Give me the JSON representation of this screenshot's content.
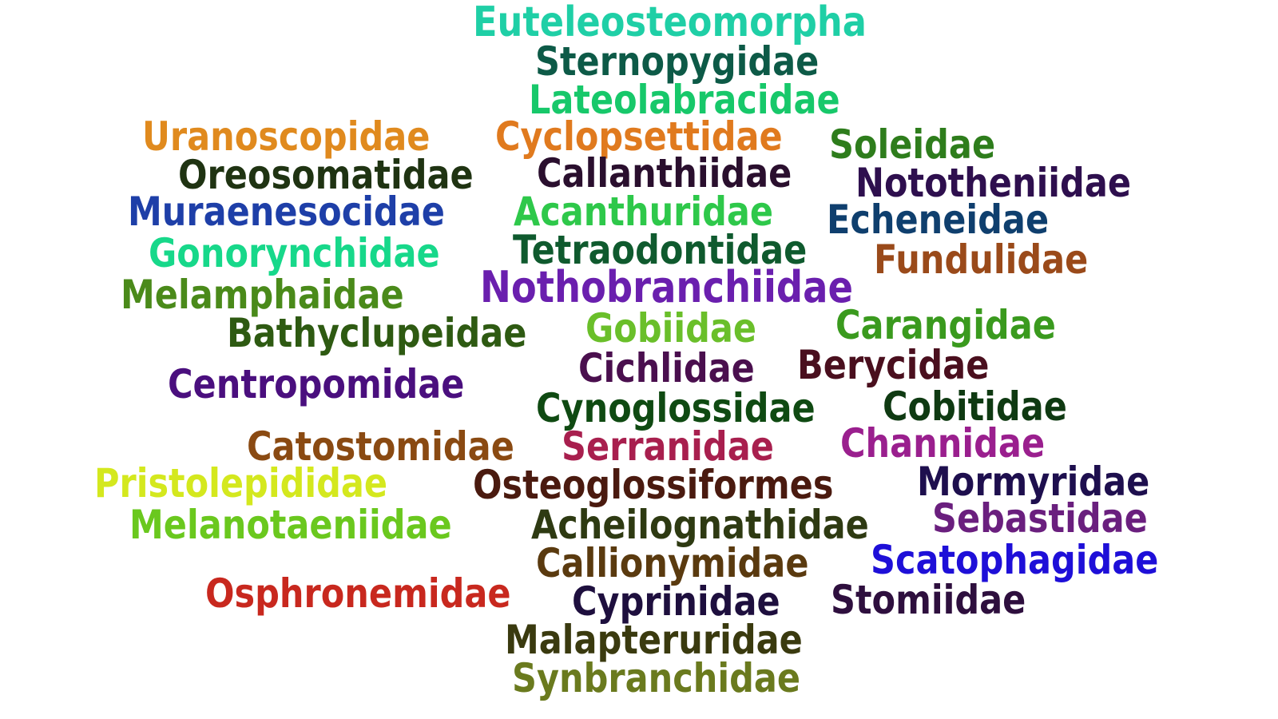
{
  "words": [
    {
      "text": "Euteleosteomorpha",
      "color": "#1fcfa6"
    },
    {
      "text": "Sternopygidae",
      "color": "#0d5a47"
    },
    {
      "text": "Lateolabracidae",
      "color": "#17c86a"
    },
    {
      "text": "Uranoscopidae",
      "color": "#e08a1e"
    },
    {
      "text": "Cyclopsettidae",
      "color": "#e07a1e"
    },
    {
      "text": "Soleidae",
      "color": "#2e7d1c"
    },
    {
      "text": "Oreosomatidae",
      "color": "#1f3312"
    },
    {
      "text": "Callanthiidae",
      "color": "#2a0f2e"
    },
    {
      "text": "Nototheniidae",
      "color": "#2e0f4e"
    },
    {
      "text": "Muraenesocidae",
      "color": "#1e3fa8"
    },
    {
      "text": "Acanthuridae",
      "color": "#2ec84a"
    },
    {
      "text": "Echeneidae",
      "color": "#0f3f6e"
    },
    {
      "text": "Gonorynchidae",
      "color": "#17d88a"
    },
    {
      "text": "Tetraodontidae",
      "color": "#0f5a2e"
    },
    {
      "text": "Fundulidae",
      "color": "#9a4a1a"
    },
    {
      "text": "Melamphaidae",
      "color": "#4a8a1a"
    },
    {
      "text": "Nothobranchiidae",
      "color": "#6a1fae"
    },
    {
      "text": "Bathyclupeidae",
      "color": "#2e5a12"
    },
    {
      "text": "Gobiidae",
      "color": "#6abf2a"
    },
    {
      "text": "Carangidae",
      "color": "#3a9a1e"
    },
    {
      "text": "Cichlidae",
      "color": "#4a0f4e"
    },
    {
      "text": "Berycidae",
      "color": "#4a0f1e"
    },
    {
      "text": "Centropomidae",
      "color": "#4a0f7e"
    },
    {
      "text": "Cynoglossidae",
      "color": "#0f4a12"
    },
    {
      "text": "Cobitidae",
      "color": "#0f3a12"
    },
    {
      "text": "Catostomidae",
      "color": "#8a4a12"
    },
    {
      "text": "Serranidae",
      "color": "#a81f4e"
    },
    {
      "text": "Channidae",
      "color": "#9a1f8e"
    },
    {
      "text": "Pristolepididae",
      "color": "#d4e81e"
    },
    {
      "text": "Osteoglossiformes",
      "color": "#4a1a0f"
    },
    {
      "text": "Mormyridae",
      "color": "#1e0f4e"
    },
    {
      "text": "Melanotaeniidae",
      "color": "#6ac81e"
    },
    {
      "text": "Acheilognathidae",
      "color": "#2e3a12"
    },
    {
      "text": "Sebastidae",
      "color": "#6a1f7e"
    },
    {
      "text": "Callionymidae",
      "color": "#5a3a0f"
    },
    {
      "text": "Scatophagidae",
      "color": "#1e0fd8"
    },
    {
      "text": "Osphronemidae",
      "color": "#c8281e"
    },
    {
      "text": "Cyprinidae",
      "color": "#1e0f3e"
    },
    {
      "text": "Stomiidae",
      "color": "#2e0f3e"
    },
    {
      "text": "Malapteruridae",
      "color": "#3a3a0f"
    },
    {
      "text": "Synbranchidae",
      "color": "#6a7a1e"
    }
  ]
}
